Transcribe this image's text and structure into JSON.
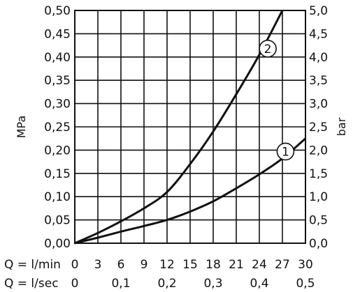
{
  "chart_data": {
    "type": "line",
    "ylabel_left": "MPa",
    "ylabel_right": "bar",
    "x_row1_label": "Q = l/min",
    "x_row2_label": "Q = l/sec",
    "x_ticks_lmin": [
      "0",
      "3",
      "6",
      "9",
      "12",
      "15",
      "18",
      "21",
      "24",
      "27",
      "30"
    ],
    "x_ticks_lsec": [
      "0",
      "0,1",
      "0,2",
      "0,3",
      "0,4",
      "0,5"
    ],
    "y_ticks_mpa": [
      "0,00",
      "0,05",
      "0,10",
      "0,15",
      "0,20",
      "0,25",
      "0,30",
      "0,35",
      "0,40",
      "0,45",
      "0,50"
    ],
    "y_ticks_bar": [
      "0,0",
      "0,5",
      "1,0",
      "1,5",
      "2,0",
      "2,5",
      "3,0",
      "3,5",
      "4,0",
      "4,5",
      "5,0"
    ],
    "xlim": [
      0,
      30
    ],
    "ylim": [
      0,
      0.5
    ],
    "grid": true,
    "series": [
      {
        "marker": "1",
        "x": [
          0,
          3,
          6,
          9,
          12,
          15,
          18,
          21,
          24,
          27,
          30
        ],
        "y": [
          0,
          0.012,
          0.025,
          0.037,
          0.05,
          0.068,
          0.09,
          0.118,
          0.148,
          0.182,
          0.225
        ]
      },
      {
        "marker": "2",
        "x": [
          0,
          3,
          6,
          9,
          12,
          15,
          18,
          21,
          24,
          27
        ],
        "y": [
          0,
          0.022,
          0.047,
          0.075,
          0.11,
          0.17,
          0.24,
          0.32,
          0.405,
          0.5
        ]
      }
    ],
    "marker_positions": [
      {
        "label": "1",
        "x": 27.4,
        "y": 0.197
      },
      {
        "label": "2",
        "x": 25.1,
        "y": 0.418
      }
    ]
  }
}
